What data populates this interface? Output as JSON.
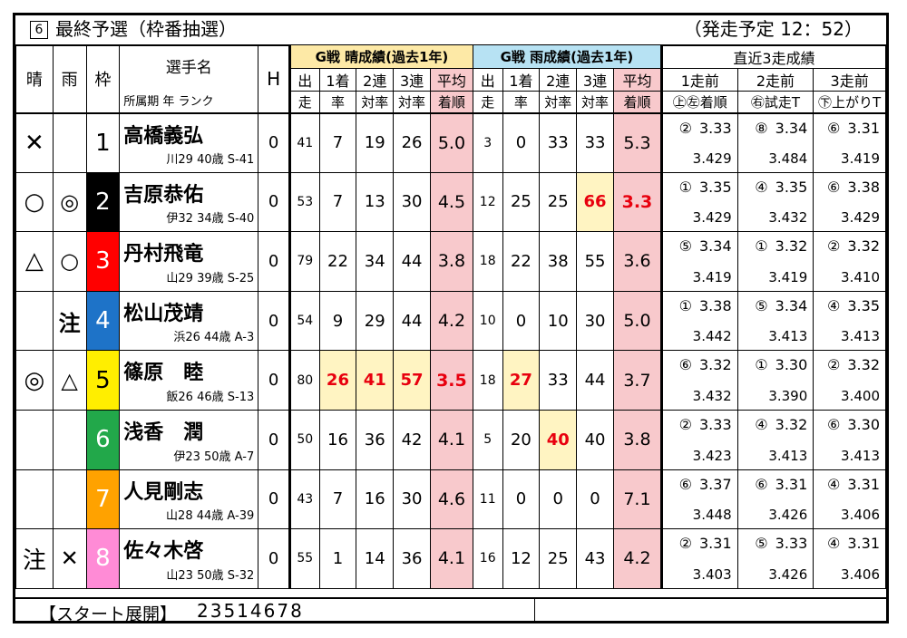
{
  "header": {
    "race_no": "6",
    "race_title": "最終予選（枠番抽選）",
    "start_time": "（発走予定 12：52）"
  },
  "columns": {
    "sunny": "晴",
    "rainy": "雨",
    "waku": "枠",
    "name_top": "選手名",
    "name_sub": "所属期 年 ランク",
    "handicap": "H",
    "group_sunny": "G戦 晴成績(過去1年)",
    "group_rainy": "G戦 雨成績(過去1年)",
    "group_recent": "直近3走成績",
    "starts_1": "出",
    "starts_2": "走",
    "win_1": "1着",
    "win_2": "率",
    "two_1": "2連",
    "two_2": "対率",
    "three_1": "3連",
    "three_2": "対率",
    "avg_1": "平均",
    "avg_2": "着順",
    "r1_1": "1走前",
    "r1_2": "㊤㊧着順",
    "r2_1": "2走前",
    "r2_2": "㊨試走T",
    "r3_1": "3走前",
    "r3_2": "㊦上がりT"
  },
  "players": [
    {
      "sunny": "✕",
      "rainy": "",
      "waku": "1",
      "name": "高橋義弘",
      "info": "川29 40歳 S-41",
      "h": "0",
      "s_starts": "41",
      "s_win": "7",
      "s_two": "19",
      "s_three": "26",
      "s_avg": "5.0",
      "r_starts": "3",
      "r_win": "0",
      "r_two": "33",
      "r_three": "33",
      "r_avg": "5.3",
      "rec": [
        [
          "②",
          "3.33",
          "3.429"
        ],
        [
          "⑧",
          "3.34",
          "3.484"
        ],
        [
          "⑥",
          "3.31",
          "3.419"
        ]
      ]
    },
    {
      "sunny": "○",
      "rainy": "◎",
      "waku": "2",
      "name": "吉原恭佑",
      "info": "伊32 34歳 S-40",
      "h": "0",
      "s_starts": "53",
      "s_win": "7",
      "s_two": "13",
      "s_three": "30",
      "s_avg": "4.5",
      "r_starts": "12",
      "r_win": "25",
      "r_two": "25",
      "r_three": "66",
      "r_avg": "3.3",
      "rec": [
        [
          "①",
          "3.35",
          "3.429"
        ],
        [
          "④",
          "3.35",
          "3.432"
        ],
        [
          "⑥",
          "3.38",
          "3.429"
        ]
      ]
    },
    {
      "sunny": "△",
      "rainy": "○",
      "waku": "3",
      "name": "丹村飛竜",
      "info": "山29 39歳 S-25",
      "h": "0",
      "s_starts": "79",
      "s_win": "22",
      "s_two": "34",
      "s_three": "44",
      "s_avg": "3.8",
      "r_starts": "18",
      "r_win": "22",
      "r_two": "38",
      "r_three": "55",
      "r_avg": "3.6",
      "rec": [
        [
          "⑤",
          "3.34",
          "3.419"
        ],
        [
          "①",
          "3.32",
          "3.419"
        ],
        [
          "②",
          "3.32",
          "3.410"
        ]
      ]
    },
    {
      "sunny": "",
      "rainy": "注",
      "waku": "4",
      "name": "松山茂靖",
      "info": "浜26 44歳 A-3",
      "h": "0",
      "s_starts": "54",
      "s_win": "9",
      "s_two": "29",
      "s_three": "44",
      "s_avg": "4.2",
      "r_starts": "10",
      "r_win": "0",
      "r_two": "10",
      "r_three": "30",
      "r_avg": "5.0",
      "rec": [
        [
          "①",
          "3.38",
          "3.442"
        ],
        [
          "⑤",
          "3.34",
          "3.413"
        ],
        [
          "④",
          "3.35",
          "3.413"
        ]
      ]
    },
    {
      "sunny": "◎",
      "rainy": "△",
      "waku": "5",
      "name": "篠原　睦",
      "info": "飯26 46歳 S-13",
      "h": "0",
      "s_starts": "80",
      "s_win": "26",
      "s_two": "41",
      "s_three": "57",
      "s_avg": "3.5",
      "r_starts": "18",
      "r_win": "27",
      "r_two": "33",
      "r_three": "44",
      "r_avg": "3.7",
      "rec": [
        [
          "⑥",
          "3.32",
          "3.432"
        ],
        [
          "①",
          "3.30",
          "3.390"
        ],
        [
          "②",
          "3.32",
          "3.400"
        ]
      ]
    },
    {
      "sunny": "",
      "rainy": "",
      "waku": "6",
      "name": "浅香　潤",
      "info": "伊23 50歳 A-7",
      "h": "0",
      "s_starts": "50",
      "s_win": "16",
      "s_two": "36",
      "s_three": "42",
      "s_avg": "4.1",
      "r_starts": "5",
      "r_win": "20",
      "r_two": "40",
      "r_three": "40",
      "r_avg": "3.8",
      "rec": [
        [
          "②",
          "3.33",
          "3.423"
        ],
        [
          "④",
          "3.32",
          "3.413"
        ],
        [
          "⑥",
          "3.30",
          "3.413"
        ]
      ]
    },
    {
      "sunny": "",
      "rainy": "",
      "waku": "7",
      "name": "人見剛志",
      "info": "山28 44歳 A-39",
      "h": "0",
      "s_starts": "43",
      "s_win": "7",
      "s_two": "16",
      "s_three": "30",
      "s_avg": "4.6",
      "r_starts": "11",
      "r_win": "0",
      "r_two": "0",
      "r_three": "0",
      "r_avg": "7.1",
      "rec": [
        [
          "⑥",
          "3.37",
          "3.448"
        ],
        [
          "⑥",
          "3.31",
          "3.426"
        ],
        [
          "④",
          "3.31",
          "3.406"
        ]
      ]
    },
    {
      "sunny": "注",
      "rainy": "✕",
      "waku": "8",
      "name": "佐々木啓",
      "info": "山23 50歳 S-32",
      "h": "0",
      "s_starts": "55",
      "s_win": "1",
      "s_two": "14",
      "s_three": "36",
      "s_avg": "4.1",
      "r_starts": "16",
      "r_win": "12",
      "r_two": "25",
      "r_three": "43",
      "r_avg": "4.2",
      "rec": [
        [
          "②",
          "3.31",
          "3.403"
        ],
        [
          "⑤",
          "3.33",
          "3.426"
        ],
        [
          "④",
          "3.31",
          "3.406"
        ]
      ]
    }
  ],
  "footer": {
    "label": "【スタート展開】",
    "value": "23514678"
  }
}
